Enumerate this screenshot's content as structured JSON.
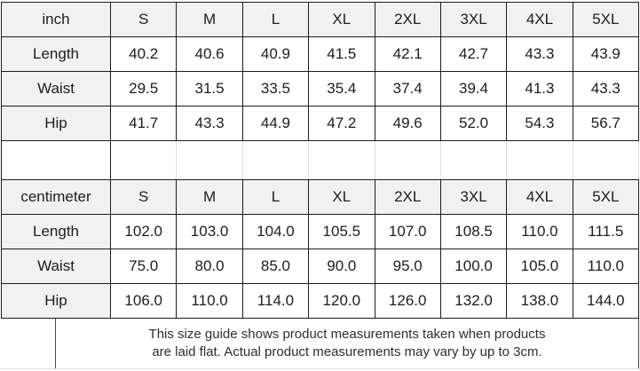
{
  "colors": {
    "border": "#1c1c1c",
    "header_bg": "#f1f1f1",
    "divider": "#d7dee8"
  },
  "chart_data": [
    {
      "type": "table",
      "unit": "inch",
      "sizes": [
        "S",
        "M",
        "L",
        "XL",
        "2XL",
        "3XL",
        "4XL",
        "5XL"
      ],
      "rows": [
        {
          "label": "Length",
          "values": [
            "40.2",
            "40.6",
            "40.9",
            "41.5",
            "42.1",
            "42.7",
            "43.3",
            "43.9"
          ]
        },
        {
          "label": "Waist",
          "values": [
            "29.5",
            "31.5",
            "33.5",
            "35.4",
            "37.4",
            "39.4",
            "41.3",
            "43.3"
          ]
        },
        {
          "label": "Hip",
          "values": [
            "41.7",
            "43.3",
            "44.9",
            "47.2",
            "49.6",
            "52.0",
            "54.3",
            "56.7"
          ]
        }
      ]
    },
    {
      "type": "table",
      "unit": "centimeter",
      "sizes": [
        "S",
        "M",
        "L",
        "XL",
        "2XL",
        "3XL",
        "4XL",
        "5XL"
      ],
      "rows": [
        {
          "label": "Length",
          "values": [
            "102.0",
            "103.0",
            "104.0",
            "105.5",
            "107.0",
            "108.5",
            "110.0",
            "111.5"
          ]
        },
        {
          "label": "Waist",
          "values": [
            "75.0",
            "80.0",
            "85.0",
            "90.0",
            "95.0",
            "100.0",
            "105.0",
            "110.0"
          ]
        },
        {
          "label": "Hip",
          "values": [
            "106.0",
            "110.0",
            "114.0",
            "120.0",
            "126.0",
            "132.0",
            "138.0",
            "144.0"
          ]
        }
      ]
    }
  ],
  "footer": {
    "line1": "This size guide shows product measurements taken when products",
    "line2": "are laid flat. Actual product measurements may vary by up to 3cm."
  }
}
